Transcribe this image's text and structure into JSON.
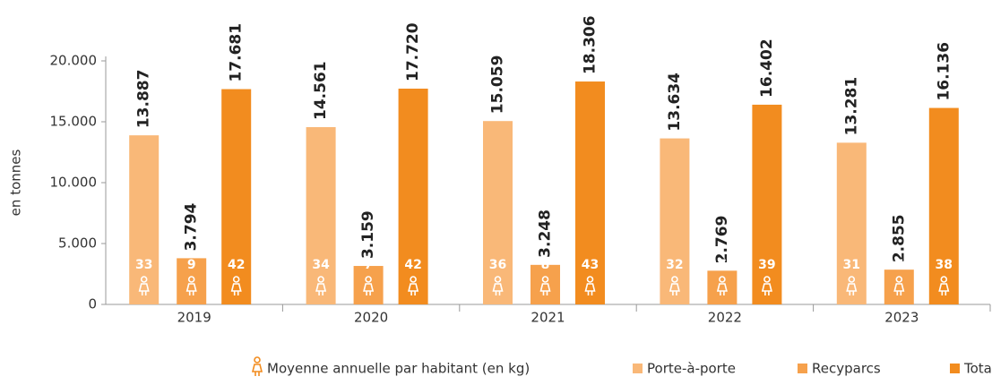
{
  "chart_data": {
    "type": "bar",
    "y_label": "en tonnes",
    "categories": [
      "2019",
      "2020",
      "2021",
      "2022",
      "2023"
    ],
    "per_capita_label": "Moyenne annuelle par habitant (en kg)",
    "ylim": [
      0,
      20000
    ],
    "yticks": [
      0,
      {
        "value": 5000,
        "label": "5.000"
      },
      {
        "value": 10000,
        "label": "10.000"
      },
      {
        "value": 15000,
        "label": "15.000"
      },
      {
        "value": 20000,
        "label": "20.000"
      }
    ],
    "series": [
      {
        "name": "Porte-à-porte",
        "color": "#f9b878",
        "values": [
          13887,
          14561,
          15059,
          13634,
          13281
        ],
        "value_labels": [
          "13.887",
          "14.561",
          "15.059",
          "13.634",
          "13.281"
        ],
        "per_capita": [
          33,
          34,
          36,
          32,
          31
        ]
      },
      {
        "name": "Recyparcs",
        "color": "#f6a14c",
        "values": [
          3794,
          3159,
          3248,
          2769,
          2855
        ],
        "value_labels": [
          "3.794",
          "3.159",
          "3.248",
          "2.769",
          "2.855"
        ],
        "per_capita": [
          9,
          7,
          8,
          7,
          7
        ]
      },
      {
        "name": "Total",
        "color": "#f28c1f",
        "values": [
          17681,
          17720,
          18306,
          16402,
          16136
        ],
        "value_labels": [
          "17.681",
          "17.720",
          "18.306",
          "16.402",
          "16.136"
        ],
        "per_capita": [
          42,
          42,
          43,
          39,
          38
        ]
      }
    ]
  }
}
